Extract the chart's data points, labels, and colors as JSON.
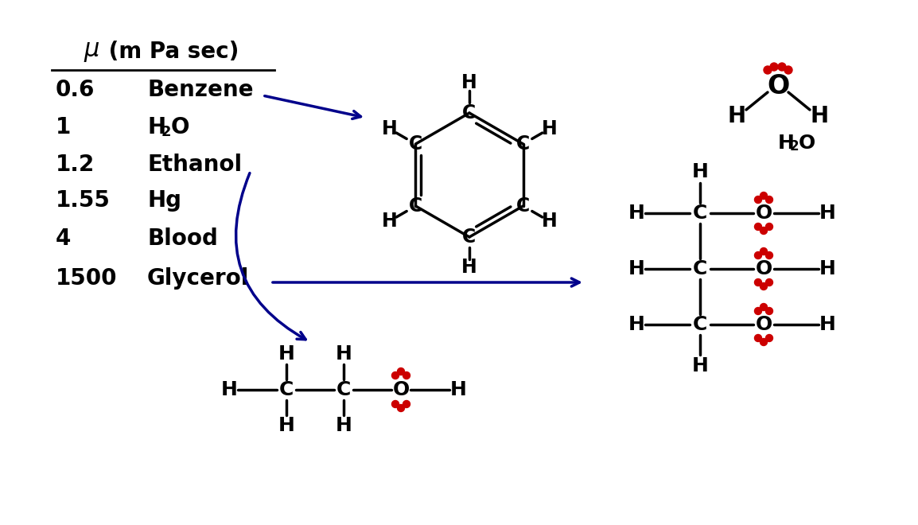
{
  "bg_color": "#ffffff",
  "text_color": "#000000",
  "arrow_color": "#00008B",
  "dot_color": "#CC0000",
  "table_data": [
    [
      "0.6",
      "Benzene"
    ],
    [
      "1",
      "H2O"
    ],
    [
      "1.2",
      "Ethanol"
    ],
    [
      "1.55",
      "Hg"
    ],
    [
      "4",
      "Blood"
    ],
    [
      "1500",
      "Glycerol"
    ]
  ],
  "figw": 11.54,
  "figh": 6.6,
  "dpi": 100
}
